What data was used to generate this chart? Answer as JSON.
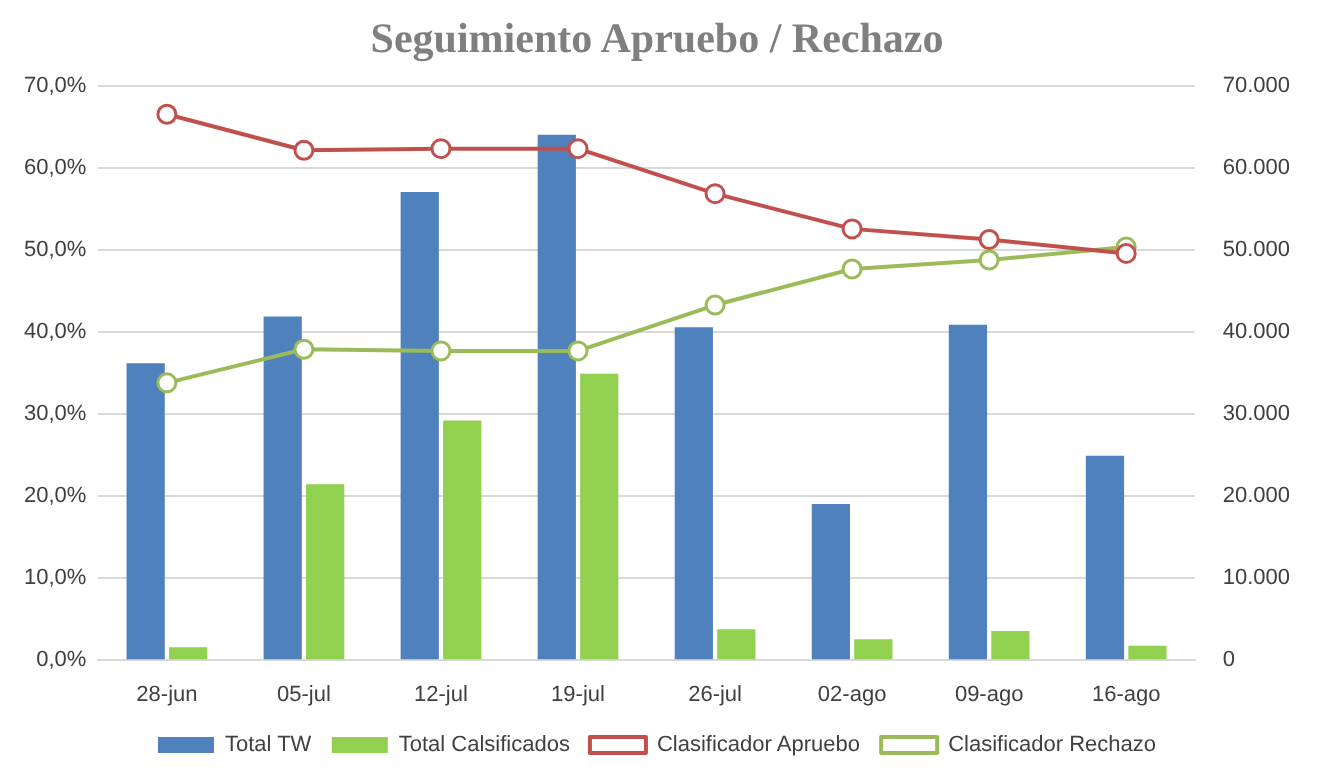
{
  "chart_data": {
    "type": "bar",
    "title": "Seguimiento Apruebo / Rechazo",
    "categories": [
      "28-jun",
      "05-jul",
      "12-jul",
      "19-jul",
      "26-jul",
      "02-ago",
      "09-ago",
      "16-ago"
    ],
    "series": [
      {
        "name": "Total TW",
        "axis": "y2",
        "color": "#4f81bd",
        "values": [
          36200,
          41900,
          57100,
          64100,
          40600,
          19000,
          40900,
          24900
        ]
      },
      {
        "name": "Total Calsificados",
        "axis": "y2",
        "color": "#92d050",
        "values": [
          1500,
          21400,
          29200,
          34900,
          3700,
          2500,
          3500,
          1700
        ]
      },
      {
        "name": "Clasificador Apruebo",
        "type": "line",
        "color": "#c0504d",
        "values": [
          66.6,
          62.2,
          62.4,
          62.4,
          56.9,
          52.6,
          51.3,
          49.6
        ]
      },
      {
        "name": "Clasificador Rechazo",
        "type": "line",
        "color": "#9bbb59",
        "values": [
          33.8,
          37.9,
          37.7,
          37.7,
          43.3,
          47.7,
          48.8,
          50.4
        ]
      }
    ],
    "ylim": [
      0,
      70
    ],
    "yticks": [
      {
        "value": 0,
        "label": "0,0%"
      },
      {
        "value": 10,
        "label": "10,0%"
      },
      {
        "value": 20,
        "label": "20,0%"
      },
      {
        "value": 30,
        "label": "30,0%"
      },
      {
        "value": 40,
        "label": "40,0%"
      },
      {
        "value": 50,
        "label": "50,0%"
      },
      {
        "value": 60,
        "label": "60,0%"
      },
      {
        "value": 70,
        "label": "70,0%"
      }
    ],
    "y2lim": [
      0,
      70000
    ],
    "y2ticks": [
      {
        "value": 0,
        "label": "0"
      },
      {
        "value": 10000,
        "label": "10.000"
      },
      {
        "value": 20000,
        "label": "20.000"
      },
      {
        "value": 30000,
        "label": "30.000"
      },
      {
        "value": 40000,
        "label": "40.000"
      },
      {
        "value": 50000,
        "label": "50.000"
      },
      {
        "value": 60000,
        "label": "60.000"
      },
      {
        "value": 70000,
        "label": "70.000"
      }
    ],
    "grid": "y",
    "legend": "bottom",
    "marker": "circle",
    "line_style": "solid"
  }
}
